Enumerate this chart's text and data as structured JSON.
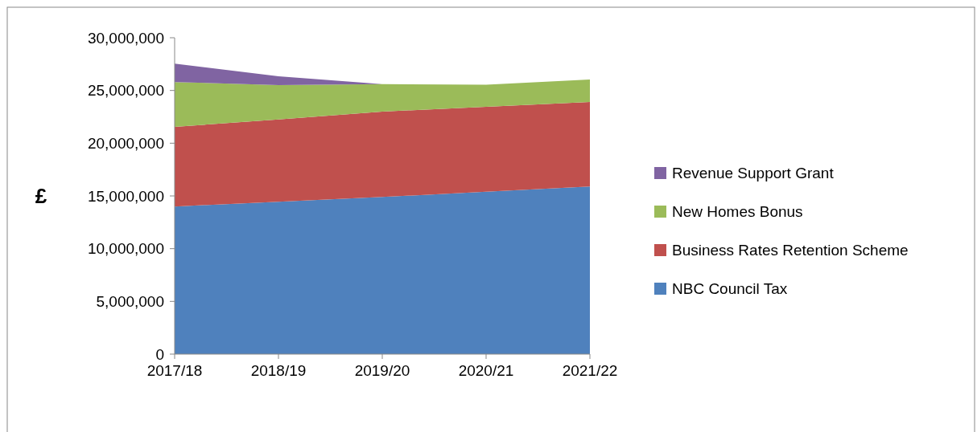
{
  "chart_data": {
    "type": "area",
    "stacked": true,
    "ylabel": "£",
    "categories": [
      "2017/18",
      "2018/19",
      "2019/20",
      "2020/21",
      "2021/22"
    ],
    "ylim": [
      0,
      30000000
    ],
    "yticks": [
      {
        "value": 0,
        "label": "0"
      },
      {
        "value": 5000000,
        "label": "5,000,000"
      },
      {
        "value": 10000000,
        "label": "10,000,000"
      },
      {
        "value": 15000000,
        "label": "15,000,000"
      },
      {
        "value": 20000000,
        "label": "20,000,000"
      },
      {
        "value": 25000000,
        "label": "25,000,000"
      },
      {
        "value": 30000000,
        "label": "30,000,000"
      }
    ],
    "legend": "right",
    "grid": false,
    "series": [
      {
        "name": "NBC Council Tax",
        "color": "#4f81bd",
        "values": [
          14000000,
          14450000,
          14900000,
          15400000,
          15900000
        ]
      },
      {
        "name": "Business Rates Retention Scheme",
        "color": "#c0504d",
        "values": [
          7550000,
          7800000,
          8100000,
          8050000,
          8000000
        ]
      },
      {
        "name": "New Homes Bonus",
        "color": "#9bbb59",
        "values": [
          4250000,
          3250000,
          2600000,
          2100000,
          2150000
        ]
      },
      {
        "name": "Revenue Support Grant",
        "color": "#8064a2",
        "values": [
          1750000,
          850000,
          0,
          0,
          0
        ]
      }
    ]
  }
}
